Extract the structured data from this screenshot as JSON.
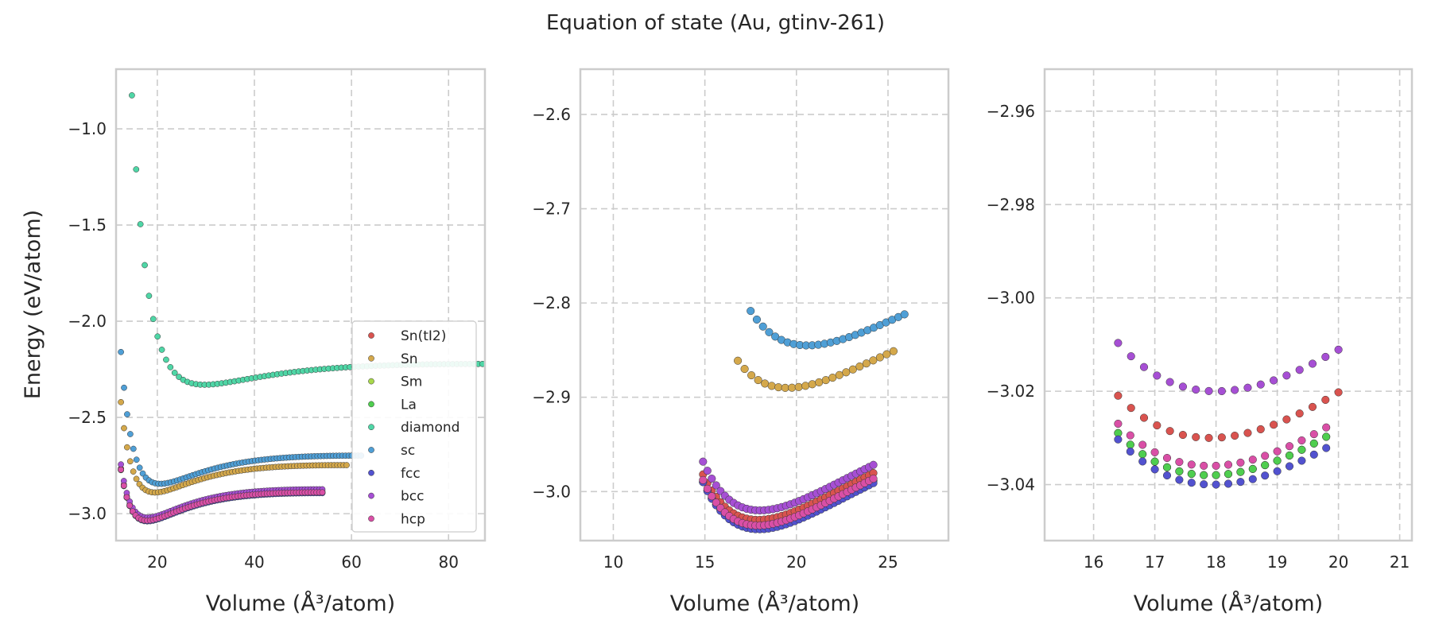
{
  "figure": {
    "title": "Equation of state (Au, gtinv-261)"
  },
  "colors": {
    "Sn(tI2)": "#d9534f",
    "Sn": "#d4a84b",
    "Sm": "#a8d84b",
    "La": "#4fce4f",
    "diamond": "#4fd6a6",
    "sc": "#4f9fd6",
    "fcc": "#5252cf",
    "bcc": "#a64fd4",
    "hcp": "#d94fa6"
  },
  "chart_data": [
    {
      "type": "scatter",
      "panel": "full-range",
      "xlabel": "Volume (Å³/atom)",
      "ylabel": "Energy (eV/atom)",
      "xlim": [
        11.5,
        87.5
      ],
      "ylim": [
        -3.14,
        -0.69
      ],
      "xticks": [
        20,
        40,
        60,
        80
      ],
      "yticks": [
        -3.0,
        -2.5,
        -2.0,
        -1.5,
        -1.0
      ],
      "ytick_labels": [
        "−3.0",
        "−2.5",
        "−2.0",
        "−1.5",
        "−1.0"
      ],
      "grid": true,
      "legend": {
        "position": "lower-right",
        "entries": [
          "Sn(tI2)",
          "Sn",
          "Sm",
          "La",
          "diamond",
          "sc",
          "fcc",
          "bcc",
          "hcp"
        ]
      },
      "series": [
        {
          "name": "Sn(tI2)",
          "model": {
            "kind": "eos",
            "V0": 17.9,
            "E0": -3.03,
            "B": 0.99,
            "Vmin": 12.5,
            "Vmax": 54,
            "n": 70
          }
        },
        {
          "name": "Sn",
          "model": {
            "kind": "eos",
            "V0": 19.5,
            "E0": -2.89,
            "B": 0.96,
            "Vmin": 12.5,
            "Vmax": 59,
            "n": 74
          }
        },
        {
          "name": "Sm",
          "model": {
            "kind": "eos",
            "V0": 17.9,
            "E0": -3.038,
            "B": 0.99,
            "Vmin": 12.5,
            "Vmax": 54,
            "n": 70
          }
        },
        {
          "name": "La",
          "model": {
            "kind": "eos",
            "V0": 17.9,
            "E0": -3.038,
            "B": 0.99,
            "Vmin": 12.5,
            "Vmax": 54,
            "n": 70
          }
        },
        {
          "name": "diamond",
          "model": {
            "kind": "eos",
            "V0": 29.7,
            "E0": -2.33,
            "B": 0.73,
            "Vmin": 13.0,
            "Vmax": 87,
            "n": 85
          }
        },
        {
          "name": "sc",
          "model": {
            "kind": "eos",
            "V0": 20.6,
            "E0": -2.845,
            "B": 0.99,
            "Vmin": 12.5,
            "Vmax": 62,
            "n": 78
          }
        },
        {
          "name": "fcc",
          "model": {
            "kind": "eos",
            "V0": 17.95,
            "E0": -3.04,
            "B": 0.99,
            "Vmin": 12.5,
            "Vmax": 54,
            "n": 70
          }
        },
        {
          "name": "bcc",
          "model": {
            "kind": "eos",
            "V0": 18.0,
            "E0": -3.02,
            "B": 0.99,
            "Vmin": 12.5,
            "Vmax": 54,
            "n": 70
          }
        },
        {
          "name": "hcp",
          "model": {
            "kind": "eos",
            "V0": 17.9,
            "E0": -3.036,
            "B": 0.99,
            "Vmin": 12.5,
            "Vmax": 54,
            "n": 70
          }
        }
      ]
    },
    {
      "type": "scatter",
      "panel": "mid-zoom",
      "xlabel": "Volume (Å³/atom)",
      "ylabel": "",
      "xlim": [
        8.2,
        28.3
      ],
      "ylim": [
        -3.052,
        -2.552
      ],
      "xticks": [
        10,
        15,
        20,
        25
      ],
      "yticks": [
        -3.0,
        -2.9,
        -2.8,
        -2.7,
        -2.6
      ],
      "ytick_labels": [
        "−3.0",
        "−2.9",
        "−2.8",
        "−2.7",
        "−2.6"
      ],
      "grid": true,
      "series": [
        {
          "name": "Sn(tI2)",
          "model": {
            "kind": "eos",
            "V0": 17.9,
            "E0": -3.03,
            "B": 0.99,
            "Vmin": 14.9,
            "Vmax": 24.2,
            "n": 40
          }
        },
        {
          "name": "Sn",
          "model": {
            "kind": "eos",
            "V0": 19.5,
            "E0": -2.89,
            "B": 0.96,
            "Vmin": 16.8,
            "Vmax": 25.3,
            "n": 24
          }
        },
        {
          "name": "Sm",
          "model": {
            "kind": "eos",
            "V0": 17.9,
            "E0": -3.038,
            "B": 0.99,
            "Vmin": 14.9,
            "Vmax": 24.2,
            "n": 40
          }
        },
        {
          "name": "La",
          "model": {
            "kind": "eos",
            "V0": 17.9,
            "E0": -3.038,
            "B": 0.99,
            "Vmin": 14.9,
            "Vmax": 24.2,
            "n": 40
          }
        },
        {
          "name": "sc",
          "model": {
            "kind": "eos",
            "V0": 20.6,
            "E0": -2.845,
            "B": 0.99,
            "Vmin": 17.5,
            "Vmax": 25.9,
            "n": 26
          }
        },
        {
          "name": "fcc",
          "model": {
            "kind": "eos",
            "V0": 17.95,
            "E0": -3.04,
            "B": 0.99,
            "Vmin": 14.9,
            "Vmax": 24.2,
            "n": 40
          }
        },
        {
          "name": "bcc",
          "model": {
            "kind": "eos",
            "V0": 18.0,
            "E0": -3.02,
            "B": 0.99,
            "Vmin": 14.9,
            "Vmax": 24.2,
            "n": 40
          }
        },
        {
          "name": "hcp",
          "model": {
            "kind": "eos",
            "V0": 17.9,
            "E0": -3.036,
            "B": 0.99,
            "Vmin": 14.9,
            "Vmax": 24.2,
            "n": 40
          }
        }
      ]
    },
    {
      "type": "scatter",
      "panel": "minimum-zoom",
      "xlabel": "Volume (Å³/atom)",
      "ylabel": "",
      "xlim": [
        15.2,
        21.2
      ],
      "ylim": [
        -3.052,
        -2.951
      ],
      "xticks": [
        16,
        17,
        18,
        19,
        20,
        21
      ],
      "yticks": [
        -3.04,
        -3.02,
        -3.0,
        -2.98,
        -2.96
      ],
      "ytick_labels": [
        "−3.04",
        "−3.02",
        "−3.00",
        "−2.98",
        "−2.96"
      ],
      "grid": true,
      "series": [
        {
          "name": "Sn(tI2)",
          "model": {
            "kind": "eos",
            "V0": 17.9,
            "E0": -3.03,
            "B": 0.99,
            "Vmin": 16.4,
            "Vmax": 20.0,
            "n": 18
          }
        },
        {
          "name": "Sm",
          "model": {
            "kind": "eos",
            "V0": 17.9,
            "E0": -3.038,
            "B": 0.99,
            "Vmin": 16.4,
            "Vmax": 19.8,
            "n": 18
          }
        },
        {
          "name": "La",
          "model": {
            "kind": "eos",
            "V0": 17.9,
            "E0": -3.038,
            "B": 0.99,
            "Vmin": 16.4,
            "Vmax": 19.8,
            "n": 18
          }
        },
        {
          "name": "fcc",
          "model": {
            "kind": "eos",
            "V0": 17.95,
            "E0": -3.04,
            "B": 0.99,
            "Vmin": 16.4,
            "Vmax": 19.8,
            "n": 18
          }
        },
        {
          "name": "bcc",
          "model": {
            "kind": "eos",
            "V0": 18.0,
            "E0": -3.02,
            "B": 0.99,
            "Vmin": 16.4,
            "Vmax": 20.0,
            "n": 18
          }
        },
        {
          "name": "hcp",
          "model": {
            "kind": "eos",
            "V0": 17.9,
            "E0": -3.036,
            "B": 0.99,
            "Vmin": 16.4,
            "Vmax": 19.8,
            "n": 18
          }
        }
      ]
    }
  ]
}
